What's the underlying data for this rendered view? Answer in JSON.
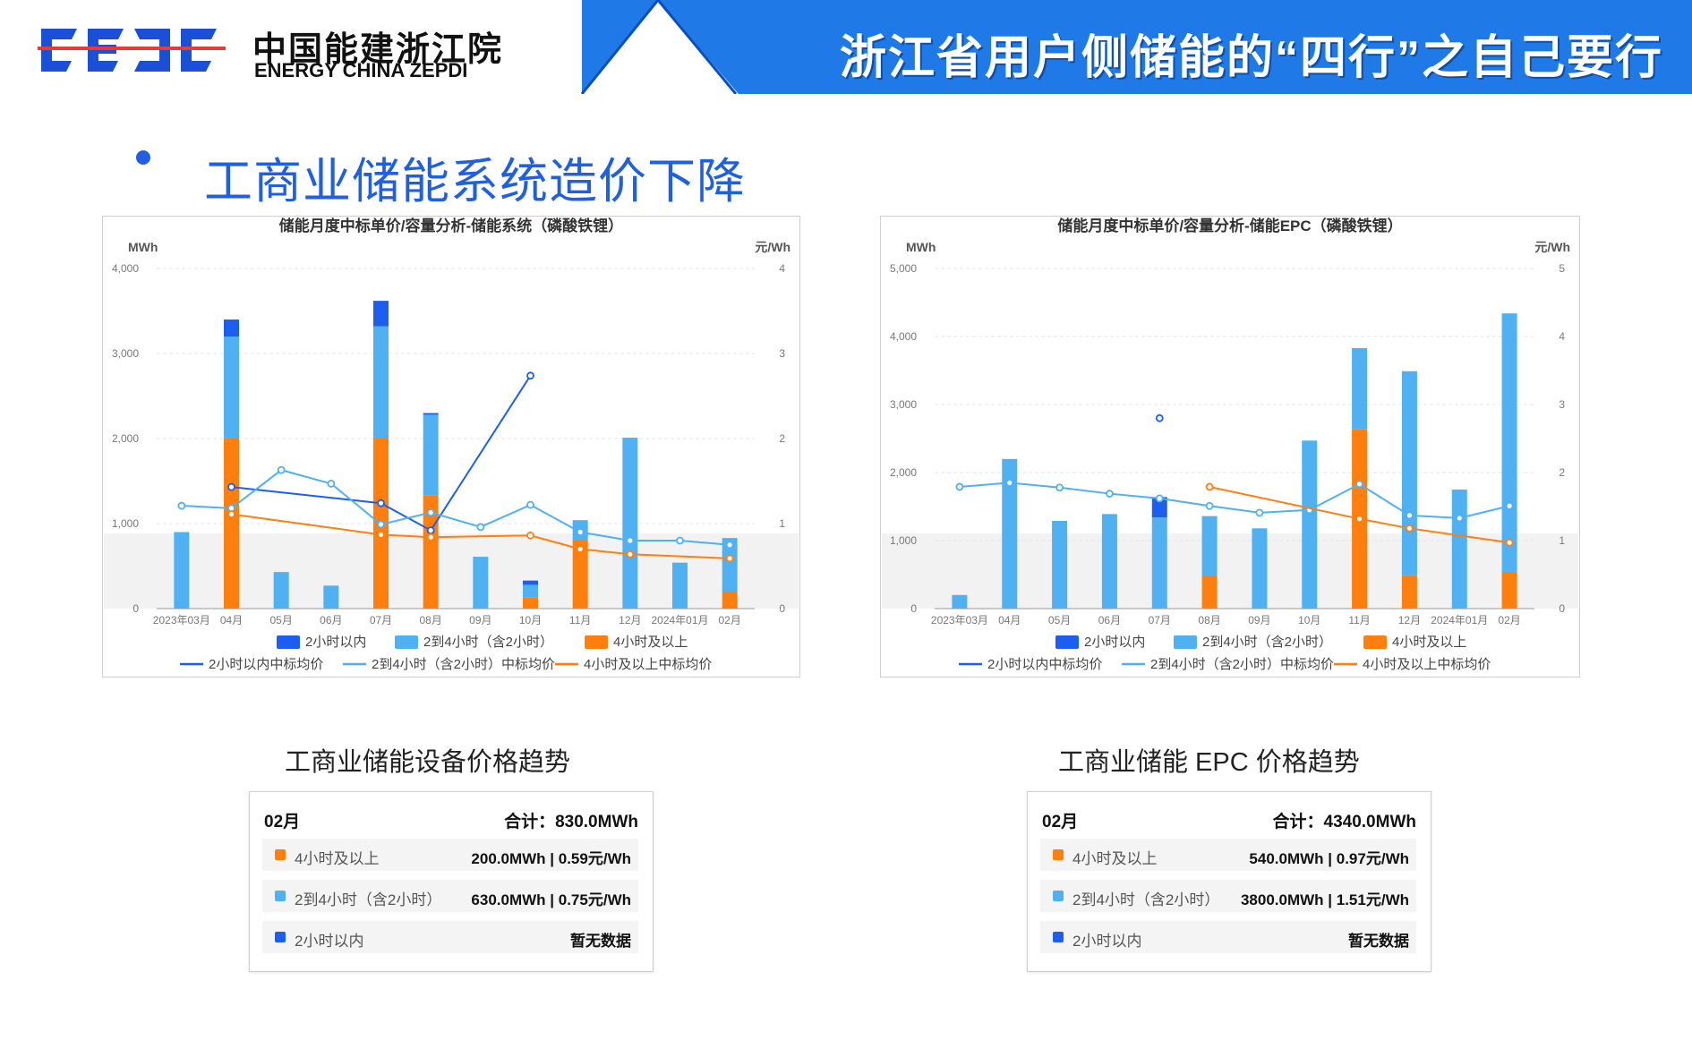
{
  "header": {
    "org_cn": "中国能建浙江院",
    "org_en": "ENERGY CHINA ZEPDI",
    "title": "浙江省用户侧储能的“四行”之自己要行"
  },
  "colors": {
    "brand_blue": "#1f7ae8",
    "dark_blue": "#1c5ff0",
    "light_blue": "#4fb0f2",
    "orange": "#ff7f0e",
    "title_blue": "#1f5fe0"
  },
  "section_title": "工商业储能系统造价下降",
  "chart_data": [
    {
      "type": "bar",
      "title": "储能月度中标单价/容量分析-储能系统（磷酸铁锂）",
      "y_left_label": "MWh",
      "y_right_label": "元/Wh",
      "y_left_ticks": [
        "0",
        "1,000",
        "2,000",
        "3,000",
        "4,000"
      ],
      "y_right_ticks": [
        "0",
        "1",
        "2",
        "3",
        "4"
      ],
      "ylim_left": [
        0,
        4000
      ],
      "ylim_right": [
        0,
        4
      ],
      "categories": [
        "2023年03月",
        "04月",
        "05月",
        "06月",
        "07月",
        "08月",
        "09月",
        "10月",
        "11月",
        "12月",
        "2024年01月",
        "02月"
      ],
      "stacked": true,
      "series": [
        {
          "name": "4小时及以上",
          "kind": "bar",
          "color": "#ff7f0e",
          "values": [
            0,
            2000,
            0,
            0,
            2000,
            1330,
            0,
            130,
            800,
            0,
            0,
            200
          ]
        },
        {
          "name": "2到4小时（含2小时）",
          "kind": "bar",
          "color": "#4fb0f2",
          "values": [
            900,
            1200,
            430,
            270,
            1320,
            950,
            610,
            150,
            240,
            2010,
            540,
            630
          ]
        },
        {
          "name": "2小时以内",
          "kind": "bar",
          "color": "#1c5ff0",
          "values": [
            0,
            200,
            0,
            0,
            300,
            20,
            0,
            50,
            0,
            0,
            0,
            0
          ]
        }
      ],
      "lines": [
        {
          "name": "2小时以内中标均价",
          "color": "#1c5ff0",
          "values": [
            null,
            1.43,
            null,
            null,
            1.24,
            0.92,
            null,
            2.74,
            null,
            null,
            null,
            null
          ]
        },
        {
          "name": "2到4小时（含2小时）中标均价",
          "color": "#4fb0f2",
          "values": [
            1.21,
            1.18,
            1.63,
            1.47,
            0.99,
            1.13,
            0.96,
            1.22,
            0.9,
            0.8,
            0.8,
            0.75
          ]
        },
        {
          "name": "4小时及以上中标均价",
          "color": "#ff7f0e",
          "values": [
            null,
            1.11,
            null,
            null,
            0.87,
            0.84,
            null,
            0.86,
            0.7,
            0.64,
            null,
            0.59
          ]
        }
      ],
      "legend": [
        "2小时以内",
        "2到4小时（含2小时）",
        "4小时及以上",
        "2小时以内中标均价",
        "2到4小时（含2小时）中标均价",
        "4小时及以上中标均价"
      ]
    },
    {
      "type": "bar",
      "title": "储能月度中标单价/容量分析-储能EPC（磷酸铁锂）",
      "y_left_label": "MWh",
      "y_right_label": "元/Wh",
      "y_left_ticks": [
        "0",
        "1,000",
        "2,000",
        "3,000",
        "4,000",
        "5,000"
      ],
      "y_right_ticks": [
        "0",
        "1",
        "2",
        "3",
        "4",
        "5"
      ],
      "ylim_left": [
        0,
        5000
      ],
      "ylim_right": [
        0,
        5
      ],
      "categories": [
        "2023年03月",
        "04月",
        "05月",
        "06月",
        "07月",
        "08月",
        "09月",
        "10月",
        "11月",
        "12月",
        "2024年01月",
        "02月"
      ],
      "stacked": true,
      "series": [
        {
          "name": "4小时及以上",
          "kind": "bar",
          "color": "#ff7f0e",
          "values": [
            0,
            0,
            0,
            0,
            0,
            480,
            0,
            0,
            2640,
            490,
            0,
            540
          ]
        },
        {
          "name": "2到4小时（含2小时）",
          "kind": "bar",
          "color": "#4fb0f2",
          "values": [
            200,
            2200,
            1290,
            1390,
            1340,
            880,
            1180,
            2470,
            1190,
            3000,
            1750,
            3800
          ]
        },
        {
          "name": "2小时以内",
          "kind": "bar",
          "color": "#1c5ff0",
          "values": [
            0,
            0,
            0,
            0,
            300,
            0,
            0,
            0,
            0,
            0,
            0,
            0
          ]
        }
      ],
      "lines": [
        {
          "name": "2小时以内中标均价",
          "color": "#1c5ff0",
          "values": [
            null,
            null,
            null,
            null,
            2.8,
            null,
            null,
            null,
            null,
            null,
            null,
            null
          ]
        },
        {
          "name": "2到4小时（含2小时）中标均价",
          "color": "#4fb0f2",
          "values": [
            1.79,
            1.85,
            1.78,
            1.69,
            1.62,
            1.51,
            1.41,
            1.45,
            1.83,
            1.37,
            1.33,
            1.51
          ]
        },
        {
          "name": "4小时及以上中标均价",
          "color": "#ff7f0e",
          "values": [
            null,
            null,
            null,
            null,
            null,
            1.79,
            null,
            null,
            1.32,
            1.18,
            null,
            0.97
          ]
        }
      ],
      "legend": [
        "2小时以内",
        "2到4小时（含2小时）",
        "4小时及以上",
        "2小时以内中标均价",
        "2到4小时（含2小时）中标均价",
        "4小时及以上中标均价"
      ]
    }
  ],
  "captions": [
    "工商业储能设备价格趋势",
    "工商业储能 EPC 价格趋势"
  ],
  "tooltips": [
    {
      "month": "02月",
      "total": "合计：830.0MWh",
      "rows": [
        {
          "name": "4小时及以上",
          "value": "200.0MWh | 0.59元/Wh",
          "color": "#ff7f0e"
        },
        {
          "name": "2到4小时（含2小时）",
          "value": "630.0MWh | 0.75元/Wh",
          "color": "#4fb0f2"
        },
        {
          "name": "2小时以内",
          "value": "暂无数据",
          "color": "#1c5ff0"
        }
      ]
    },
    {
      "month": "02月",
      "total": "合计：4340.0MWh",
      "rows": [
        {
          "name": "4小时及以上",
          "value": "540.0MWh | 0.97元/Wh",
          "color": "#ff7f0e"
        },
        {
          "name": "2到4小时（含2小时）",
          "value": "3800.0MWh | 1.51元/Wh",
          "color": "#4fb0f2"
        },
        {
          "name": "2小时以内",
          "value": "暂无数据",
          "color": "#1c5ff0"
        }
      ]
    }
  ]
}
